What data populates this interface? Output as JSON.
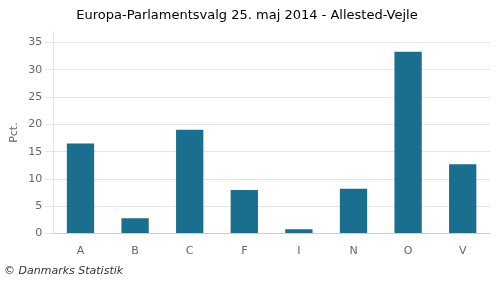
{
  "chart_data": {
    "type": "bar",
    "title": "Europa-Parlamentsvalg 25. maj 2014 - Allested-Vejle",
    "ylabel": "Pct.",
    "footer": "© Danmarks Statistik",
    "categories": [
      "A",
      "B",
      "C",
      "F",
      "I",
      "N",
      "O",
      "V"
    ],
    "values": [
      16.5,
      2.8,
      19.0,
      8.0,
      0.8,
      8.2,
      33.3,
      12.7
    ],
    "color": "#1a6e8e",
    "ylim": [
      0,
      37
    ],
    "yticks": [
      0,
      5,
      10,
      15,
      20,
      25,
      30,
      35
    ],
    "grid": true
  }
}
